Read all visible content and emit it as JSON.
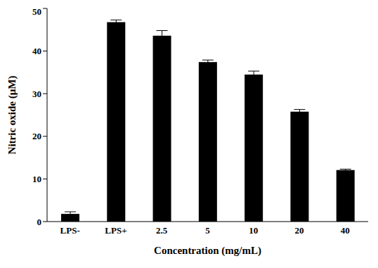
{
  "chart_data": {
    "type": "bar",
    "x_label": "Concentration (mg/mL)",
    "y_label": "Nitric oxide (μM)",
    "categories": [
      "LPS-",
      "LPS+",
      "2.5",
      "5",
      "10",
      "20",
      "40"
    ],
    "values": [
      1.8,
      46.8,
      43.6,
      37.4,
      34.5,
      25.8,
      12.1
    ],
    "errors": [
      0.5,
      0.5,
      1.2,
      0.5,
      0.8,
      0.5,
      0.2
    ],
    "color": "#000000",
    "ylim": [
      0,
      50
    ],
    "yticks": [
      0,
      10,
      20,
      30,
      40,
      50
    ],
    "grid": false
  }
}
